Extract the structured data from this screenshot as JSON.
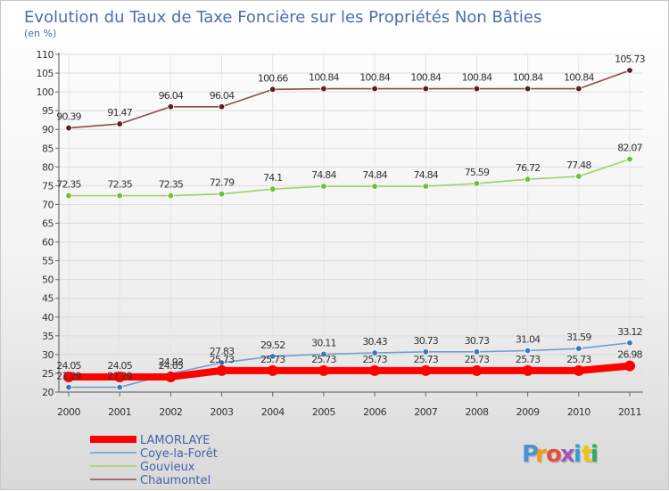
{
  "chart_data": {
    "type": "line",
    "title": "Evolution du Taux de Taxe Foncière sur les Propriétés Non Bâties",
    "subtitle": "(en %)",
    "xlabel": "",
    "ylabel": "",
    "ylim": [
      20,
      110
    ],
    "yticks": [
      20,
      25,
      30,
      35,
      40,
      45,
      50,
      55,
      60,
      65,
      70,
      75,
      80,
      85,
      90,
      95,
      100,
      105,
      110
    ],
    "categories": [
      "2000",
      "2001",
      "2002",
      "2003",
      "2004",
      "2005",
      "2006",
      "2007",
      "2008",
      "2009",
      "2010",
      "2011"
    ],
    "grid": true,
    "legend_position": "bottom-left",
    "series": [
      {
        "name": "LAMORLAYE",
        "color": "#ff0000",
        "values": [
          24.05,
          24.05,
          24.05,
          25.73,
          25.73,
          25.73,
          25.73,
          25.73,
          25.73,
          25.73,
          25.73,
          26.98
        ],
        "labels": [
          "24.05",
          "24.05",
          "24.05",
          "25.73",
          "25.73",
          "25.73",
          "25.73",
          "25.73",
          "25.73",
          "25.73",
          "25.73",
          "26.98"
        ]
      },
      {
        "name": "Coye-la-Forêt",
        "color": "#6d9fd0",
        "values": [
          21.29,
          21.29,
          24.93,
          27.83,
          29.52,
          30.11,
          30.43,
          30.73,
          30.73,
          31.04,
          31.59,
          33.12
        ],
        "labels": [
          "21.29",
          "21.29",
          "24.93",
          "27.83",
          "29.52",
          "30.11",
          "30.43",
          "30.73",
          "30.73",
          "31.04",
          "31.59",
          "33.12"
        ]
      },
      {
        "name": "Gouvieux",
        "color": "#9ed26a",
        "values": [
          72.35,
          72.35,
          72.35,
          72.79,
          74.1,
          74.84,
          74.84,
          74.84,
          75.59,
          76.72,
          77.48,
          82.07
        ],
        "labels": [
          "72.35",
          "72.35",
          "72.35",
          "72.79",
          "74.1",
          "74.84",
          "74.84",
          "74.84",
          "75.59",
          "76.72",
          "77.48",
          "82.07"
        ]
      },
      {
        "name": "Chaumontel",
        "color": "#8c4a4a",
        "values": [
          90.39,
          91.47,
          96.04,
          96.04,
          100.66,
          100.84,
          100.84,
          100.84,
          100.84,
          100.84,
          100.84,
          105.73
        ],
        "labels": [
          "90.39",
          "91.47",
          "96.04",
          "96.04",
          "100.66",
          "100.84",
          "100.84",
          "100.84",
          "100.84",
          "100.84",
          "100.84",
          "105.73"
        ]
      }
    ]
  },
  "brand": {
    "logo_text": "Proxiti",
    "letters": [
      "P",
      "r",
      "o",
      "x",
      "i",
      "t",
      "i"
    ],
    "letter_colors": [
      "#4a90d9",
      "#f39c12",
      "#e74c3c",
      "#9b59b6",
      "#3498db",
      "#f1c40f",
      "#27ae60"
    ]
  }
}
